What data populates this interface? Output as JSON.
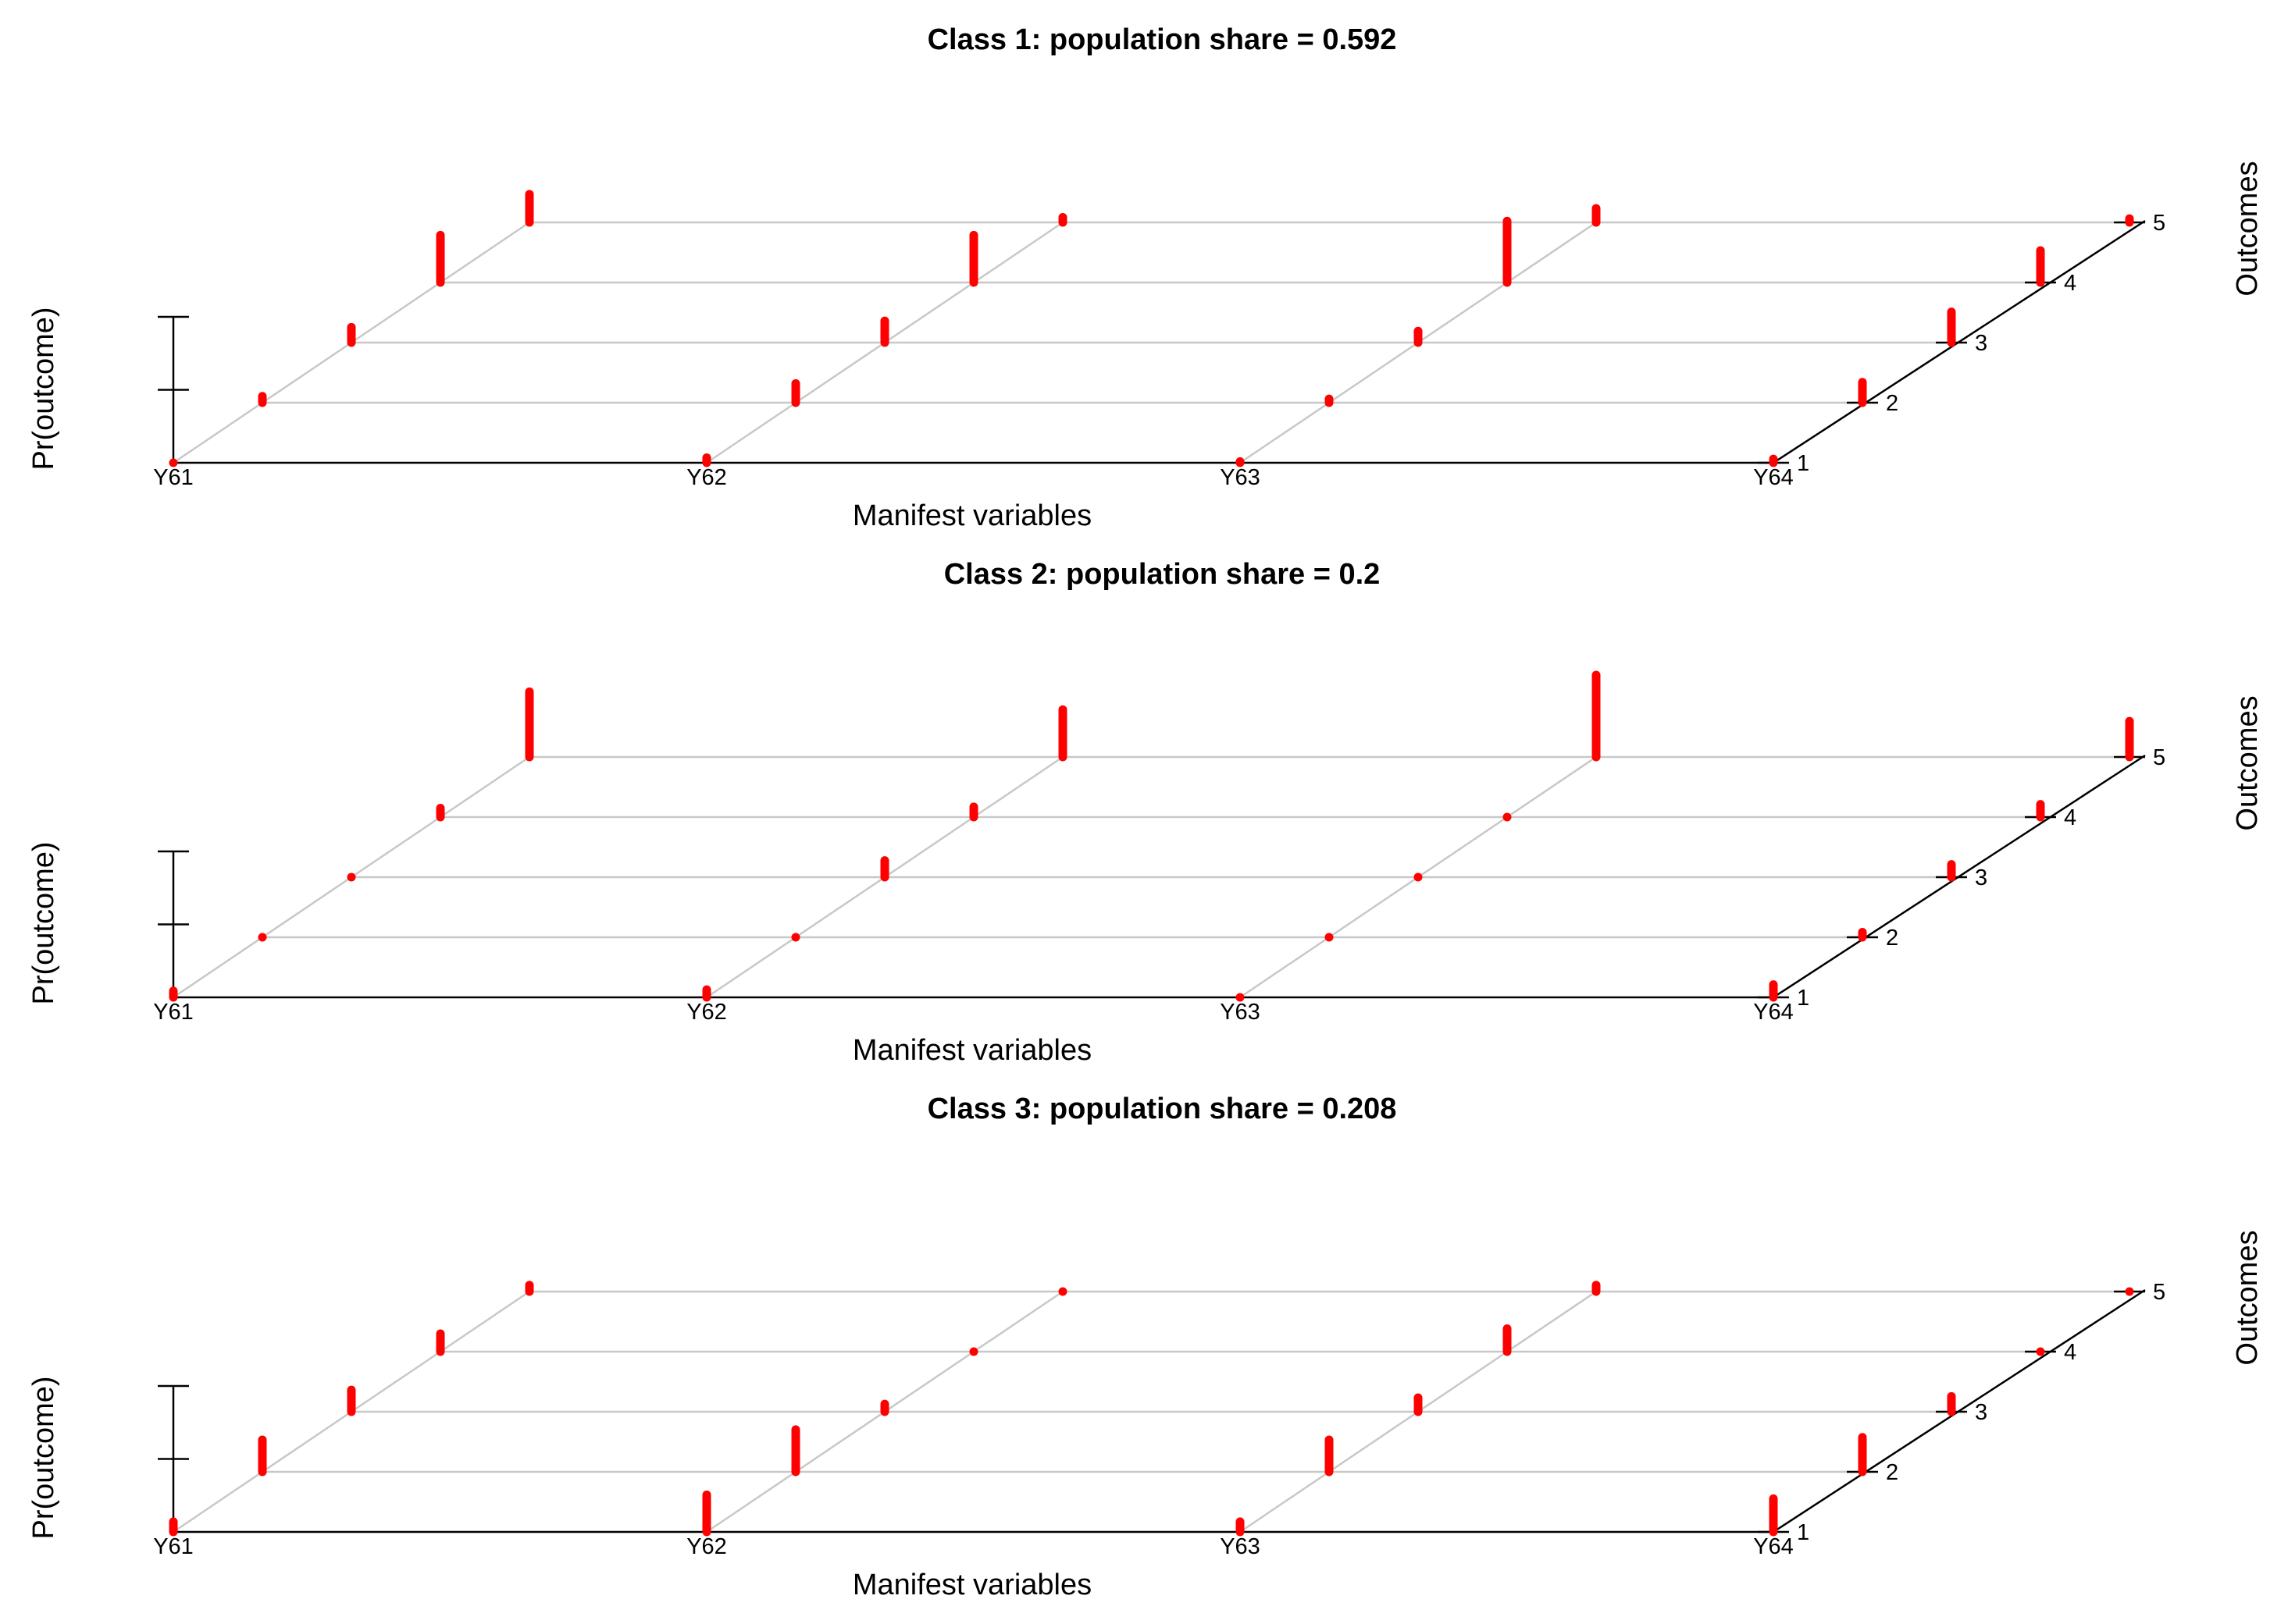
{
  "chart_data": [
    {
      "type": "bar",
      "subtype": "3d-probability-sticks",
      "title": "Class 1: population share = 0.592",
      "xlabel": "Manifest variables",
      "ylabel": "Pr(outcome)",
      "zlabel": "Outcomes",
      "variables": [
        "Y61",
        "Y62",
        "Y63",
        "Y64"
      ],
      "outcomes": [
        "1",
        "2",
        "3",
        "4",
        "5"
      ],
      "ylim": [
        0,
        1
      ],
      "values": [
        [
          0.0,
          0.05,
          0.12,
          0.37,
          0.22
        ],
        [
          0.04,
          0.15,
          0.17,
          0.37,
          0.04
        ],
        [
          0.01,
          0.03,
          0.09,
          0.48,
          0.11
        ],
        [
          0.03,
          0.16,
          0.24,
          0.25,
          0.03
        ]
      ]
    },
    {
      "type": "bar",
      "subtype": "3d-probability-sticks",
      "title": "Class 2: population share = 0.2",
      "xlabel": "Manifest variables",
      "ylabel": "Pr(outcome)",
      "zlabel": "Outcomes",
      "variables": [
        "Y61",
        "Y62",
        "Y63",
        "Y64"
      ],
      "outcomes": [
        "1",
        "2",
        "3",
        "4",
        "5"
      ],
      "ylim": [
        0,
        1
      ],
      "values": [
        [
          0.05,
          0.0,
          0.0,
          0.07,
          0.51
        ],
        [
          0.06,
          0.0,
          0.13,
          0.08,
          0.37
        ],
        [
          0.0,
          0.0,
          0.0,
          0.0,
          0.64
        ],
        [
          0.1,
          0.04,
          0.1,
          0.1,
          0.28
        ]
      ]
    },
    {
      "type": "bar",
      "subtype": "3d-probability-sticks",
      "title": "Class 3: population share = 0.208",
      "xlabel": "Manifest variables",
      "ylabel": "Pr(outcome)",
      "zlabel": "Outcomes",
      "variables": [
        "Y61",
        "Y62",
        "Y63",
        "Y64"
      ],
      "outcomes": [
        "1",
        "2",
        "3",
        "4",
        "5"
      ],
      "ylim": [
        0,
        1
      ],
      "values": [
        [
          0.08,
          0.25,
          0.17,
          0.14,
          0.05
        ],
        [
          0.29,
          0.33,
          0.06,
          0.0,
          0.0
        ],
        [
          0.08,
          0.25,
          0.11,
          0.18,
          0.05
        ],
        [
          0.26,
          0.27,
          0.12,
          0.0,
          0.0
        ]
      ]
    }
  ],
  "colors": {
    "stick": "#ff0000",
    "grid": "#c8c8c8",
    "axis": "#000000",
    "text": "#000000"
  }
}
